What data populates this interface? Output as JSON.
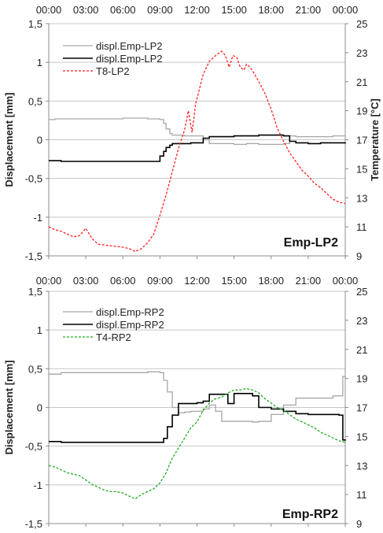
{
  "chart_data": [
    {
      "type": "line",
      "label": "Emp-LP2",
      "ylabel": "Displacement [mm]",
      "y2label": "Temperature [°C]",
      "x_ticks": [
        "00:00",
        "03:00",
        "06:00",
        "09:00",
        "12:00",
        "15:00",
        "18:00",
        "21:00",
        "00:00"
      ],
      "y_ticks": [
        "-1,5",
        "-1",
        "-0,5",
        "0",
        "0,5",
        "1",
        "1,5"
      ],
      "y2_ticks": [
        "9",
        "11",
        "13",
        "15",
        "17",
        "19",
        "21",
        "23",
        "25"
      ],
      "ylim": [
        -1.5,
        1.5
      ],
      "y2lim": [
        9,
        25
      ],
      "xlim_hours": [
        0,
        24
      ],
      "grid": "horizontal",
      "legend": "top-left",
      "series": [
        {
          "name": "displ.Emp-LP2",
          "axis": "left",
          "color": "#a6a6a6",
          "style": "solid",
          "step": true,
          "x": [
            0,
            0.5,
            1,
            2,
            3,
            4,
            5,
            6,
            7,
            8,
            8.5,
            9,
            9.3,
            9.5,
            9.8,
            10,
            10.5,
            11,
            11.5,
            12,
            12.5,
            13,
            14,
            15,
            16,
            17,
            18,
            19,
            19.5,
            20,
            21,
            22,
            23,
            24
          ],
          "y": [
            0.26,
            0.27,
            0.27,
            0.27,
            0.27,
            0.27,
            0.27,
            0.28,
            0.28,
            0.27,
            0.27,
            0.26,
            0.21,
            0.14,
            0.08,
            0.06,
            0.06,
            0.05,
            0.05,
            0.05,
            0.0,
            -0.05,
            -0.05,
            -0.06,
            -0.05,
            -0.06,
            -0.06,
            -0.05,
            0.05,
            0.04,
            0.04,
            0.04,
            0.05,
            0.05
          ]
        },
        {
          "name": "displ.Emp-LP2",
          "axis": "left",
          "color": "#000000",
          "style": "solid",
          "step": true,
          "x": [
            0,
            1,
            2,
            3,
            4,
            5,
            6,
            7,
            8,
            8.5,
            9,
            9.3,
            9.5,
            9.8,
            10,
            11,
            11.5,
            12,
            12.5,
            13,
            14,
            15,
            16,
            17,
            18,
            19,
            19.5,
            20,
            21,
            22,
            23,
            24
          ],
          "y": [
            -0.27,
            -0.28,
            -0.28,
            -0.28,
            -0.28,
            -0.28,
            -0.28,
            -0.28,
            -0.28,
            -0.28,
            -0.21,
            -0.15,
            -0.1,
            -0.07,
            -0.05,
            -0.05,
            -0.04,
            -0.04,
            0.02,
            0.04,
            0.04,
            0.05,
            0.05,
            0.06,
            0.06,
            0.05,
            -0.02,
            -0.04,
            -0.05,
            -0.04,
            -0.04,
            -0.05
          ]
        },
        {
          "name": "T8-LP2",
          "axis": "right",
          "color": "#ff2020",
          "style": "dashed",
          "step": false,
          "x": [
            0,
            0.5,
            1,
            1.5,
            2,
            2.5,
            3,
            3.5,
            4,
            5,
            6,
            6.5,
            7,
            7.5,
            8,
            8.5,
            9,
            9.5,
            10,
            10.5,
            11,
            11.3,
            11.6,
            11.9,
            12.2,
            12.5,
            13,
            13.5,
            14,
            14.3,
            14.6,
            14.9,
            15.2,
            15.5,
            15.8,
            16,
            16.3,
            16.6,
            17,
            17.5,
            18,
            18.5,
            19,
            19.5,
            20,
            20.5,
            21,
            21.5,
            22,
            22.5,
            23,
            23.5,
            24
          ],
          "y": [
            11.0,
            10.8,
            10.7,
            10.5,
            10.3,
            10.4,
            10.9,
            10.2,
            9.8,
            9.7,
            9.6,
            9.5,
            9.3,
            9.5,
            9.9,
            10.5,
            11.8,
            13.2,
            14.8,
            16.4,
            17.7,
            19.0,
            17.5,
            19.5,
            20.5,
            21.5,
            22.4,
            22.8,
            23.1,
            22.8,
            22.0,
            22.8,
            22.7,
            22.0,
            21.8,
            22.2,
            22.0,
            21.6,
            21.0,
            20.2,
            19.1,
            17.8,
            16.9,
            16.1,
            15.5,
            14.9,
            14.5,
            14.0,
            13.7,
            13.3,
            12.9,
            12.7,
            12.6
          ]
        }
      ]
    },
    {
      "type": "line",
      "label": "Emp-RP2",
      "ylabel": "Displacement [mm]",
      "y2label": "",
      "x_ticks": [
        "00:00",
        "03:00",
        "06:00",
        "09:00",
        "12:00",
        "15:00",
        "18:00",
        "21:00",
        "00:00"
      ],
      "y_ticks": [
        "-1,5",
        "-1",
        "-0,5",
        "0",
        "0,5",
        "1",
        "1,5"
      ],
      "y2_ticks": [
        "9",
        "11",
        "13",
        "15",
        "17",
        "19",
        "21",
        "23",
        "25"
      ],
      "ylim": [
        -1.5,
        1.5
      ],
      "y2lim": [
        9,
        25
      ],
      "xlim_hours": [
        0,
        24
      ],
      "grid": "horizontal",
      "legend": "top-left",
      "series": [
        {
          "name": "displ.Emp-RP2",
          "axis": "left",
          "color": "#a6a6a6",
          "style": "solid",
          "step": true,
          "x": [
            0,
            1,
            2,
            3,
            4,
            5,
            6,
            7,
            8,
            8.5,
            9,
            9.3,
            9.6,
            10,
            10.5,
            11,
            11.5,
            12,
            12.5,
            13,
            13.5,
            14,
            15,
            16,
            16.5,
            17,
            18,
            19,
            20,
            20.5,
            21,
            22,
            23,
            23.5,
            23.8,
            24
          ],
          "y": [
            0.43,
            0.45,
            0.45,
            0.45,
            0.45,
            0.45,
            0.45,
            0.45,
            0.46,
            0.46,
            0.45,
            0.35,
            0.2,
            0.0,
            -0.07,
            -0.06,
            -0.05,
            -0.05,
            -0.02,
            0.03,
            -0.05,
            -0.18,
            -0.18,
            -0.18,
            -0.19,
            -0.18,
            -0.09,
            0.03,
            0.12,
            0.12,
            0.12,
            0.12,
            0.15,
            0.15,
            0.4,
            0.42
          ]
        },
        {
          "name": "displ.Emp-RP2",
          "axis": "left",
          "color": "#000000",
          "style": "solid",
          "step": true,
          "x": [
            0,
            1,
            2,
            3,
            4,
            5,
            6,
            7,
            8,
            8.5,
            9,
            9.3,
            9.6,
            10,
            10.5,
            11,
            12,
            12.5,
            13,
            14,
            14.5,
            15,
            16,
            16.5,
            17,
            18,
            19,
            20,
            21,
            22,
            23,
            23.5,
            23.8,
            24
          ],
          "y": [
            -0.44,
            -0.45,
            -0.45,
            -0.45,
            -0.45,
            -0.45,
            -0.45,
            -0.45,
            -0.45,
            -0.45,
            -0.45,
            -0.4,
            -0.25,
            -0.1,
            0.05,
            0.05,
            0.06,
            0.08,
            0.17,
            0.17,
            0.05,
            0.18,
            0.18,
            0.15,
            0.0,
            -0.02,
            -0.05,
            -0.08,
            -0.09,
            -0.09,
            -0.09,
            -0.1,
            -0.42,
            -0.43
          ]
        },
        {
          "name": "T4-RP2",
          "axis": "right",
          "color": "#22aa22",
          "style": "dashed",
          "step": false,
          "x": [
            0,
            0.5,
            1,
            1.5,
            2,
            2.5,
            3,
            3.5,
            4,
            4.5,
            5,
            5.5,
            6,
            6.5,
            7,
            7.5,
            8,
            8.5,
            9,
            9.5,
            10,
            10.5,
            11,
            11.5,
            12,
            12.5,
            13,
            13.5,
            14,
            14.5,
            15,
            15.5,
            16,
            16.5,
            17,
            17.5,
            18,
            18.5,
            19,
            19.5,
            20,
            20.5,
            21,
            21.5,
            22,
            22.5,
            23,
            23.5,
            24
          ],
          "y": [
            13.0,
            12.9,
            12.7,
            12.5,
            12.4,
            12.3,
            12.0,
            11.7,
            11.5,
            11.3,
            11.2,
            11.2,
            11.1,
            10.9,
            10.7,
            11.0,
            11.2,
            11.4,
            11.8,
            12.5,
            13.5,
            14.2,
            14.9,
            15.6,
            16.0,
            16.8,
            17.3,
            17.6,
            17.7,
            18.0,
            18.2,
            18.2,
            18.3,
            18.2,
            18.0,
            17.6,
            17.3,
            17.0,
            16.8,
            16.5,
            16.2,
            16.0,
            15.8,
            15.6,
            15.3,
            15.1,
            14.9,
            14.7,
            14.6
          ]
        }
      ]
    }
  ]
}
